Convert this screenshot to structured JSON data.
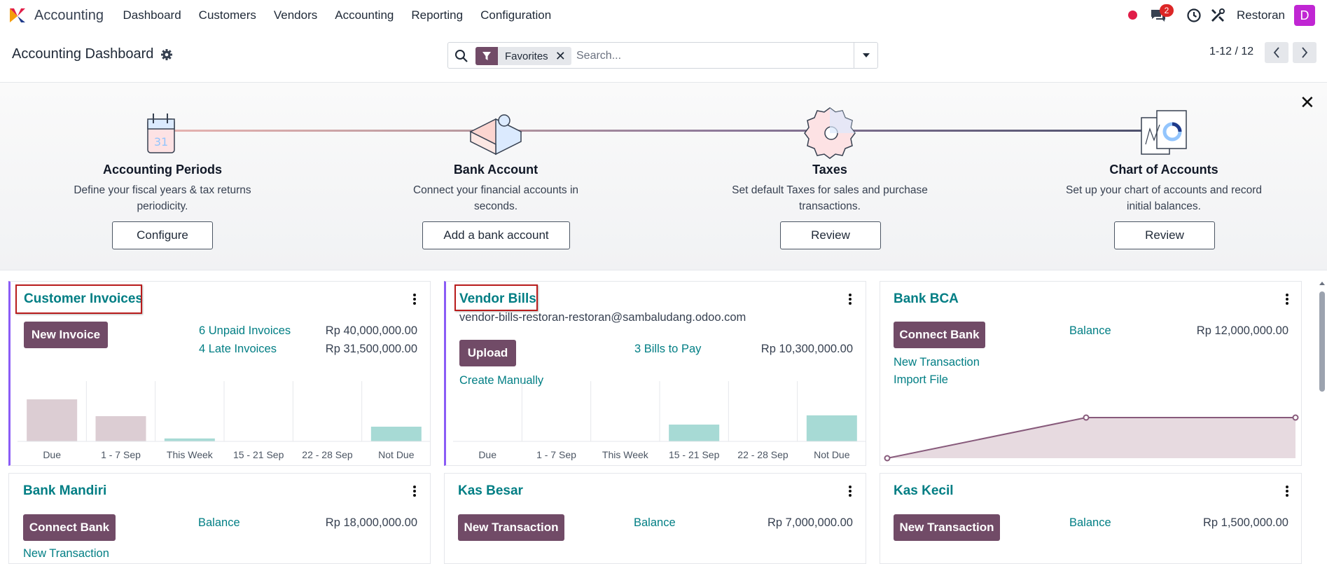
{
  "app": {
    "name": "Accounting"
  },
  "menu": [
    "Dashboard",
    "Customers",
    "Vendors",
    "Accounting",
    "Reporting",
    "Configuration"
  ],
  "systray": {
    "chat_count": "2",
    "company": "Restoran",
    "avatar_letter": "D"
  },
  "control": {
    "breadcrumb": "Accounting Dashboard",
    "facet_label": "Favorites",
    "search_placeholder": "Search...",
    "pager": "1-12 / 12"
  },
  "onboarding": {
    "steps": [
      {
        "title": "Accounting Periods",
        "desc_l1": "Define your fiscal years & tax returns",
        "desc_l2": "periodicity.",
        "button": "Configure",
        "icon": "calendar-icon"
      },
      {
        "title": "Bank Account",
        "desc_l1": "Connect your financial accounts in",
        "desc_l2": "seconds.",
        "button": "Add a bank account",
        "icon": "puzzle-icon"
      },
      {
        "title": "Taxes",
        "desc_l1": "Set default Taxes for sales and purchase",
        "desc_l2": "transactions.",
        "button": "Review",
        "icon": "gear-icon"
      },
      {
        "title": "Chart of Accounts",
        "desc_l1": "Set up your chart of accounts and record",
        "desc_l2": "initial balances.",
        "button": "Review",
        "icon": "chart-icon"
      }
    ],
    "colors": {
      "line_start": "#e7b3b0",
      "line_mid": "#8f7a9a",
      "line_end": "#4b4f6b"
    }
  },
  "cards": {
    "customer_invoices": {
      "title": "Customer Invoices",
      "button": "New Invoice",
      "unpaid_label": "6 Unpaid Invoices",
      "unpaid_amount": "Rp 40,000,000.00",
      "late_label": "4 Late Invoices",
      "late_amount": "Rp 31,500,000.00"
    },
    "vendor_bills": {
      "title": "Vendor Bills",
      "email": "vendor-bills-restoran-restoran@sambaludang.odoo.com",
      "button": "Upload",
      "bills_label": "3 Bills to Pay",
      "bills_amount": "Rp 10,300,000.00",
      "create_manually": "Create Manually"
    },
    "bank_bca": {
      "title": "Bank BCA",
      "button": "Connect Bank",
      "balance_label": "Balance",
      "balance_amount": "Rp 12,000,000.00",
      "new_transaction": "New Transaction",
      "import_file": "Import File"
    },
    "bank_mandiri": {
      "title": "Bank Mandiri",
      "button": "Connect Bank",
      "balance_label": "Balance",
      "balance_amount": "Rp 18,000,000.00",
      "next_link": "New Transaction"
    },
    "kas_besar": {
      "title": "Kas Besar",
      "button": "New Transaction",
      "balance_label": "Balance",
      "balance_amount": "Rp 7,000,000.00"
    },
    "kas_kecil": {
      "title": "Kas Kecil",
      "button": "New Transaction",
      "balance_label": "Balance",
      "balance_amount": "Rp 1,500,000.00"
    }
  },
  "chart_data": [
    {
      "type": "bar",
      "categories": [
        "Due",
        "1 - 7 Sep",
        "This Week",
        "15 - 21 Sep",
        "22 - 28 Sep",
        "Not Due"
      ],
      "values": [
        100,
        60,
        7,
        0,
        0,
        35
      ],
      "colors": [
        "#dccdd3",
        "#dccdd3",
        "#a7dad5",
        "#a7dad5",
        "#a7dad5",
        "#a7dad5"
      ],
      "ylim": [
        0,
        100
      ]
    },
    {
      "type": "bar",
      "categories": [
        "Due",
        "1 - 7 Sep",
        "This Week",
        "15 - 21 Sep",
        "22 - 28 Sep",
        "Not Due"
      ],
      "values": [
        0,
        0,
        0,
        40,
        0,
        62
      ],
      "colors": [
        "#dccdd3",
        "#dccdd3",
        "#a7dad5",
        "#a7dad5",
        "#a7dad5",
        "#a7dad5"
      ],
      "ylim": [
        0,
        100
      ]
    },
    {
      "type": "area",
      "x": [
        0,
        1,
        2
      ],
      "values": [
        0,
        12000000,
        12000000
      ],
      "colors": {
        "line": "#875a7b",
        "fill": "#e7dae0"
      },
      "ylim": [
        0,
        12000000
      ]
    }
  ]
}
